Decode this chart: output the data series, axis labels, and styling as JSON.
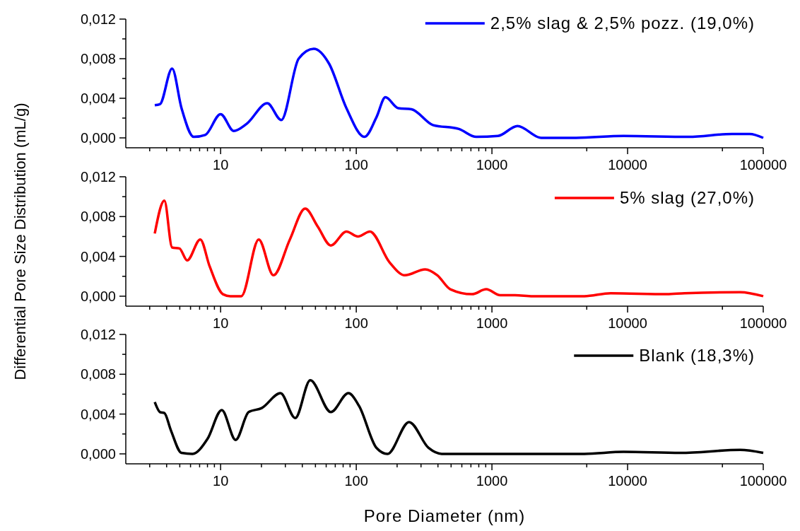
{
  "chart_data": [
    {
      "type": "line",
      "legend": "top right",
      "log": "x",
      "xlim": [
        2,
        100000
      ],
      "ylim": [
        -0.001,
        0.012
      ],
      "xticks": [
        {
          "value": 3,
          "label": null
        },
        {
          "value": 4,
          "label": null
        },
        {
          "value": 5,
          "label": null
        },
        {
          "value": 6,
          "label": null
        },
        {
          "value": 7,
          "label": null
        },
        {
          "value": 8,
          "label": null
        },
        {
          "value": 9,
          "label": null
        },
        10,
        {
          "value": 20,
          "label": null
        },
        {
          "value": 30,
          "label": null
        },
        {
          "value": 40,
          "label": null
        },
        {
          "value": 50,
          "label": null
        },
        {
          "value": 60,
          "label": null
        },
        {
          "value": 70,
          "label": null
        },
        {
          "value": 80,
          "label": null
        },
        {
          "value": 90,
          "label": null
        },
        100,
        {
          "value": 200,
          "label": null
        },
        {
          "value": 300,
          "label": null
        },
        {
          "value": 400,
          "label": null
        },
        {
          "value": 500,
          "label": null
        },
        {
          "value": 600,
          "label": null
        },
        {
          "value": 700,
          "label": null
        },
        {
          "value": 800,
          "label": null
        },
        {
          "value": 900,
          "label": null
        },
        1000,
        {
          "value": 5000,
          "label": null
        },
        10000,
        {
          "value": 50000,
          "label": null
        },
        100000
      ],
      "yticks": [
        {
          "value": 0,
          "label": "0,000"
        },
        {
          "value": 0.002,
          "label": null
        },
        {
          "value": 0.004,
          "label": "0,004"
        },
        {
          "value": 0.006,
          "label": null
        },
        {
          "value": 0.008,
          "label": "0,008"
        },
        {
          "value": 0.01,
          "label": null
        },
        {
          "value": 0.012,
          "label": "0,012"
        }
      ],
      "series": [
        {
          "name": "2,5% slag & 2,5% pozz. (19,0%)",
          "color": "#0000ff",
          "x": [
            3.27,
            3.57,
            4.39,
            5.15,
            6.34,
            7.7,
            10,
            12.5,
            15.5,
            22.1,
            28,
            37.6,
            48.6,
            63,
            84.6,
            115,
            141,
            164,
            204,
            255,
            367,
            571,
            767,
            1109,
            1543,
            2312,
            4170,
            9340,
            28200,
            58900,
            79400,
            100000
          ],
          "values": [
            0.0033,
            0.0034,
            0.007,
            0.003,
            0.0001,
            0.0003,
            0.0024,
            0.0007,
            0.0014,
            0.0035,
            0.0018,
            0.008,
            0.009,
            0.0075,
            0.003,
            0.0001,
            0.0021,
            0.0041,
            0.003,
            0.0029,
            0.0013,
            0.0009,
            0.0001,
            0.0002,
            0.0012,
            0,
            0,
            0.0002,
            0.0001,
            0.0004,
            0.0004,
            0
          ]
        }
      ]
    },
    {
      "type": "line",
      "legend": "top right",
      "log": "x",
      "xlim": [
        2,
        100000
      ],
      "ylim": [
        -0.001,
        0.012
      ],
      "ylabel": "Differential Pore Size Distribution (mL/g)",
      "xticks": [
        {
          "value": 3,
          "label": null
        },
        {
          "value": 4,
          "label": null
        },
        {
          "value": 5,
          "label": null
        },
        {
          "value": 6,
          "label": null
        },
        {
          "value": 7,
          "label": null
        },
        {
          "value": 8,
          "label": null
        },
        {
          "value": 9,
          "label": null
        },
        10,
        {
          "value": 20,
          "label": null
        },
        {
          "value": 30,
          "label": null
        },
        {
          "value": 40,
          "label": null
        },
        {
          "value": 50,
          "label": null
        },
        {
          "value": 60,
          "label": null
        },
        {
          "value": 70,
          "label": null
        },
        {
          "value": 80,
          "label": null
        },
        {
          "value": 90,
          "label": null
        },
        100,
        {
          "value": 200,
          "label": null
        },
        {
          "value": 300,
          "label": null
        },
        {
          "value": 400,
          "label": null
        },
        {
          "value": 500,
          "label": null
        },
        {
          "value": 600,
          "label": null
        },
        {
          "value": 700,
          "label": null
        },
        {
          "value": 800,
          "label": null
        },
        {
          "value": 900,
          "label": null
        },
        1000,
        {
          "value": 5000,
          "label": null
        },
        10000,
        {
          "value": 50000,
          "label": null
        },
        100000
      ],
      "yticks": [
        {
          "value": 0,
          "label": "0,000"
        },
        {
          "value": 0.002,
          "label": null
        },
        {
          "value": 0.004,
          "label": "0,004"
        },
        {
          "value": 0.006,
          "label": null
        },
        {
          "value": 0.008,
          "label": "0,008"
        },
        {
          "value": 0.01,
          "label": null
        },
        {
          "value": 0.012,
          "label": "0,012"
        }
      ],
      "series": [
        {
          "name": "5% slag (27,0%)",
          "color": "#ff0000",
          "x": [
            3.27,
            3.85,
            4.39,
            4.97,
            5.67,
            7.08,
            8.3,
            10.4,
            11.8,
            14.2,
            19.1,
            24.5,
            32.4,
            42,
            52,
            65,
            84.6,
            103,
            126,
            176,
            228,
            322,
            396,
            493,
            713,
            908,
            1150,
            1480,
            2000,
            4800,
            7500,
            19500,
            26300,
            67600,
            100000
          ],
          "values": [
            0.0063,
            0.0096,
            0.0049,
            0.0048,
            0.0036,
            0.0057,
            0.003,
            0.0002,
            0,
            0,
            0.0057,
            0.0021,
            0.0057,
            0.0088,
            0.007,
            0.0051,
            0.0065,
            0.006,
            0.0065,
            0.0034,
            0.0021,
            0.0027,
            0.0021,
            0.0007,
            0.0002,
            0.0007,
            0.0001,
            0.0001,
            0,
            0,
            0.0003,
            0.0002,
            0.0003,
            0.0004,
            0
          ]
        }
      ]
    },
    {
      "type": "line",
      "legend": "top right",
      "log": "x",
      "xlim": [
        2,
        100000
      ],
      "ylim": [
        -0.001,
        0.012
      ],
      "xlabel": "Pore Diameter (nm)",
      "xticks": [
        {
          "value": 3,
          "label": null
        },
        {
          "value": 4,
          "label": null
        },
        {
          "value": 5,
          "label": null
        },
        {
          "value": 6,
          "label": null
        },
        {
          "value": 7,
          "label": null
        },
        {
          "value": 8,
          "label": null
        },
        {
          "value": 9,
          "label": null
        },
        10,
        {
          "value": 20,
          "label": null
        },
        {
          "value": 30,
          "label": null
        },
        {
          "value": 40,
          "label": null
        },
        {
          "value": 50,
          "label": null
        },
        {
          "value": 60,
          "label": null
        },
        {
          "value": 70,
          "label": null
        },
        {
          "value": 80,
          "label": null
        },
        {
          "value": 90,
          "label": null
        },
        100,
        {
          "value": 200,
          "label": null
        },
        {
          "value": 300,
          "label": null
        },
        {
          "value": 400,
          "label": null
        },
        {
          "value": 500,
          "label": null
        },
        {
          "value": 600,
          "label": null
        },
        {
          "value": 700,
          "label": null
        },
        {
          "value": 800,
          "label": null
        },
        {
          "value": 900,
          "label": null
        },
        1000,
        {
          "value": 5000,
          "label": null
        },
        10000,
        {
          "value": 50000,
          "label": null
        },
        100000
      ],
      "yticks": [
        {
          "value": 0,
          "label": "0,000"
        },
        {
          "value": 0.002,
          "label": null
        },
        {
          "value": 0.004,
          "label": "0,004"
        },
        {
          "value": 0.006,
          "label": null
        },
        {
          "value": 0.008,
          "label": "0,008"
        },
        {
          "value": 0.01,
          "label": null
        },
        {
          "value": 0.012,
          "label": "0,012"
        }
      ],
      "series": [
        {
          "name": "Blank (18,3%)",
          "color": "#000000",
          "x": [
            3.27,
            3.57,
            3.85,
            4.29,
            5.15,
            6.2,
            8,
            10.2,
            12.9,
            16.1,
            20.1,
            27.6,
            35.5,
            45.8,
            65,
            87.5,
            105,
            141,
            170,
            245,
            341,
            426,
            4800,
            9340,
            24500,
            67600,
            100000
          ],
          "values": [
            0.0052,
            0.0042,
            0.0041,
            0.0024,
            0.0001,
            0,
            0.0015,
            0.0044,
            0.0014,
            0.0042,
            0.0046,
            0.0061,
            0.0036,
            0.0074,
            0.0042,
            0.0061,
            0.0048,
            0.0006,
            0,
            0.0032,
            0.0006,
            0,
            0,
            0.0002,
            0.0001,
            0.0004,
            0.0001
          ]
        }
      ]
    }
  ]
}
